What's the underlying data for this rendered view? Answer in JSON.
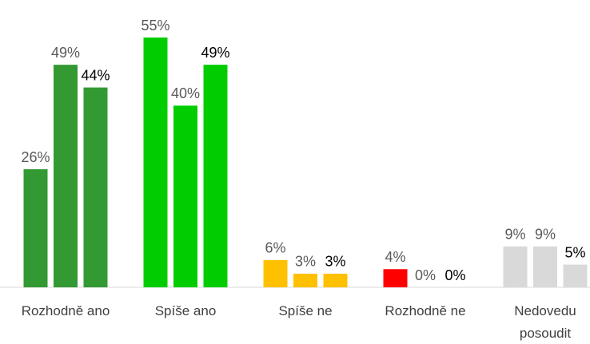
{
  "chart_data": {
    "type": "bar",
    "categories": [
      "Rozhodně ano",
      "Spíše ano",
      "Spíše ne",
      "Rozhodně ne",
      "Nedovedu posoudit"
    ],
    "category_colors": [
      "#339933",
      "#00cc00",
      "#ffc000",
      "#ff0000",
      "#d9d9d9"
    ],
    "series": [
      {
        "label_color": "#595959",
        "values": [
          26,
          55,
          6,
          4,
          9
        ],
        "value_labels": [
          "26%",
          "55%",
          "6%",
          "4%",
          "9%"
        ]
      },
      {
        "label_color": "#595959",
        "values": [
          49,
          40,
          3,
          0,
          9
        ],
        "value_labels": [
          "49%",
          "40%",
          "3%",
          "0%",
          "9%"
        ]
      },
      {
        "label_color": "#000000",
        "values": [
          44,
          49,
          3,
          0,
          5
        ],
        "value_labels": [
          "44%",
          "49%",
          "3%",
          "0%",
          "5%"
        ]
      }
    ]
  }
}
